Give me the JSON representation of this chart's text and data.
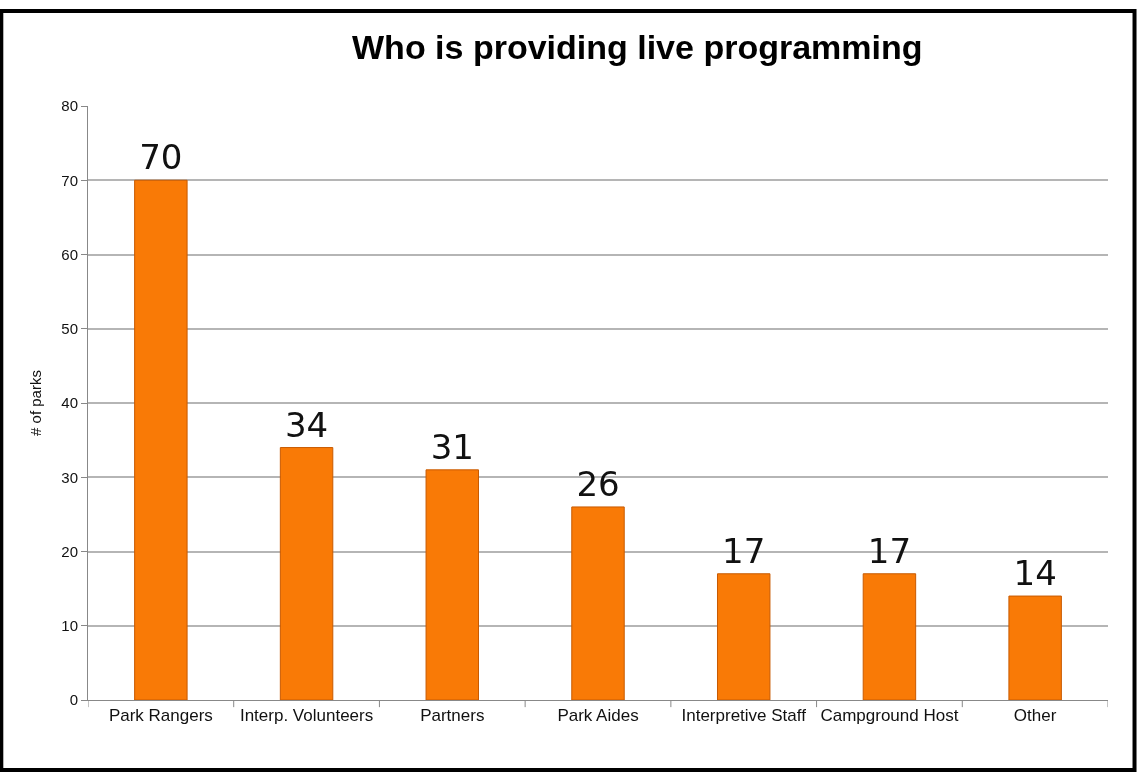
{
  "chart_data": {
    "type": "bar",
    "title": "Who is providing live programming",
    "ylabel": "# of parks",
    "categories": [
      "Park Rangers",
      "Interp. Volunteers",
      "Partners",
      "Park Aides",
      "Interpretive Staff",
      "Campground Host",
      "Other"
    ],
    "values": [
      70,
      34,
      31,
      26,
      17,
      17,
      14
    ],
    "color": "#f97a06",
    "ylim": [
      0,
      80
    ],
    "yticks": [
      0,
      10,
      20,
      30,
      40,
      50,
      60,
      70,
      80
    ],
    "grid": "y",
    "data_labels": true
  }
}
